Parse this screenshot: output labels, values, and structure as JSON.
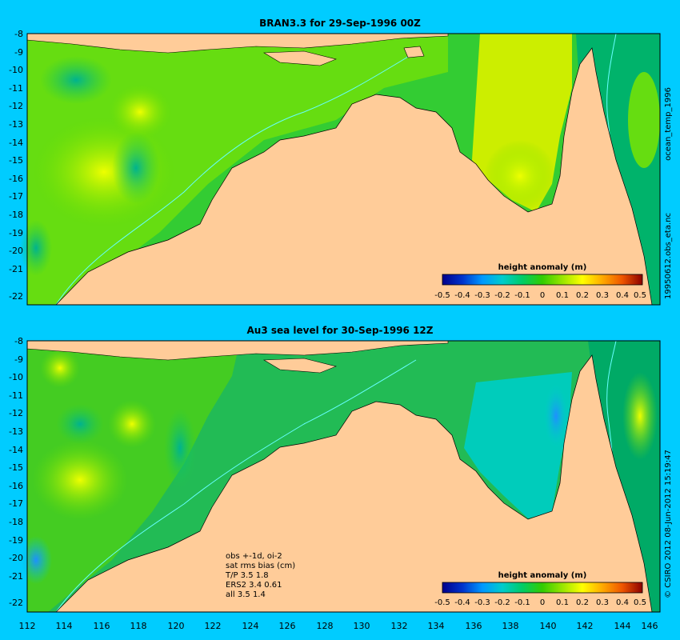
{
  "colors": {
    "background": "#00ccff",
    "land": "#ffcc99",
    "coastline": "#000000",
    "contour": "#66ffff"
  },
  "panels": [
    {
      "title": "BRAN3.3 for 29-Sep-1996 00Z",
      "colorbar_title": "height anomaly (m)",
      "lat_ticks": [
        "-8",
        "-9",
        "-10",
        "-11",
        "-12",
        "-13",
        "-14",
        "-15",
        "-16",
        "-17",
        "-18",
        "-19",
        "-20",
        "-21",
        "-22"
      ]
    },
    {
      "title": "Au3 sea level  for 30-Sep-1996 12Z",
      "colorbar_title": "height anomaly (m)",
      "lat_ticks": [
        "-8",
        "-9",
        "-10",
        "-11",
        "-12",
        "-13",
        "-14",
        "-15",
        "-16",
        "-17",
        "-18",
        "-19",
        "-20",
        "-21",
        "-22"
      ],
      "notes": [
        "obs +-1d, oi-2",
        "sat rms bias (cm)",
        "T/P  3.5 1.8",
        "ERS2 3.4 0.61",
        "all 3.5 1.4"
      ]
    }
  ],
  "lon_ticks": [
    "112",
    "114",
    "116",
    "118",
    "120",
    "122",
    "124",
    "126",
    "128",
    "130",
    "132",
    "134",
    "136",
    "138",
    "140",
    "142",
    "144",
    "146"
  ],
  "colorbar_ticks": [
    "-0.5",
    "-0.4",
    "-0.3",
    "-0.2",
    "-0.1",
    "0",
    "0.1",
    "0.2",
    "0.3",
    "0.4",
    "0.5"
  ],
  "side_labels": {
    "top": "ocean_temp_1996",
    "middle": "19950612.obs_eta.nc",
    "bottom": "© CSIRO 2012  08-Jun-2012 15:19:47"
  }
}
